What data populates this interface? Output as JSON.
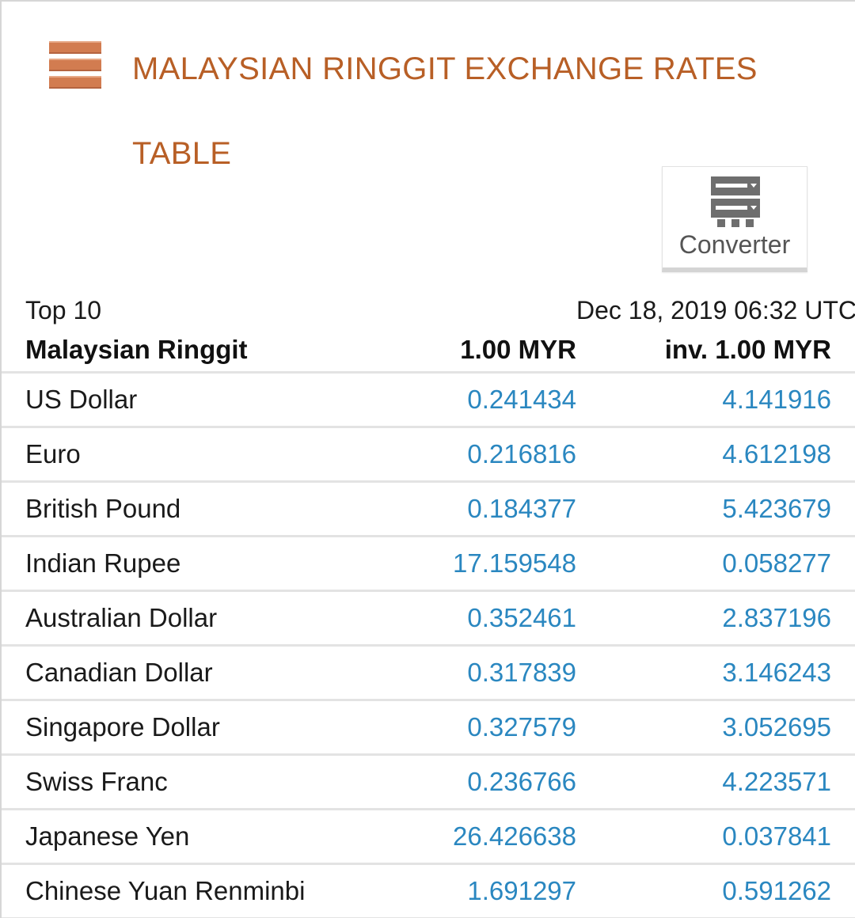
{
  "header": {
    "title_line1": "MALAYSIAN RINGGIT EXCHANGE RATES",
    "title_line2": "TABLE",
    "accent_color": "#b85f26"
  },
  "converter": {
    "label": "Converter",
    "icon": "converter-icon"
  },
  "meta": {
    "top_label": "Top 10",
    "timestamp": "Dec 18, 2019 06:32 UTC"
  },
  "table": {
    "columns": [
      "Malaysian Ringgit",
      "1.00 MYR",
      "inv. 1.00 MYR"
    ],
    "link_color": "#2a87c0",
    "rows": [
      {
        "currency": "US Dollar",
        "rate": "0.241434",
        "inverse": "4.141916"
      },
      {
        "currency": "Euro",
        "rate": "0.216816",
        "inverse": "4.612198"
      },
      {
        "currency": "British Pound",
        "rate": "0.184377",
        "inverse": "5.423679"
      },
      {
        "currency": "Indian Rupee",
        "rate": "17.159548",
        "inverse": "0.058277"
      },
      {
        "currency": "Australian Dollar",
        "rate": "0.352461",
        "inverse": "2.837196"
      },
      {
        "currency": "Canadian Dollar",
        "rate": "0.317839",
        "inverse": "3.146243"
      },
      {
        "currency": "Singapore Dollar",
        "rate": "0.327579",
        "inverse": "3.052695"
      },
      {
        "currency": "Swiss Franc",
        "rate": "0.236766",
        "inverse": "4.223571"
      },
      {
        "currency": "Japanese Yen",
        "rate": "26.426638",
        "inverse": "0.037841"
      },
      {
        "currency": "Chinese Yuan Renminbi",
        "rate": "1.691297",
        "inverse": "0.591262"
      }
    ]
  }
}
